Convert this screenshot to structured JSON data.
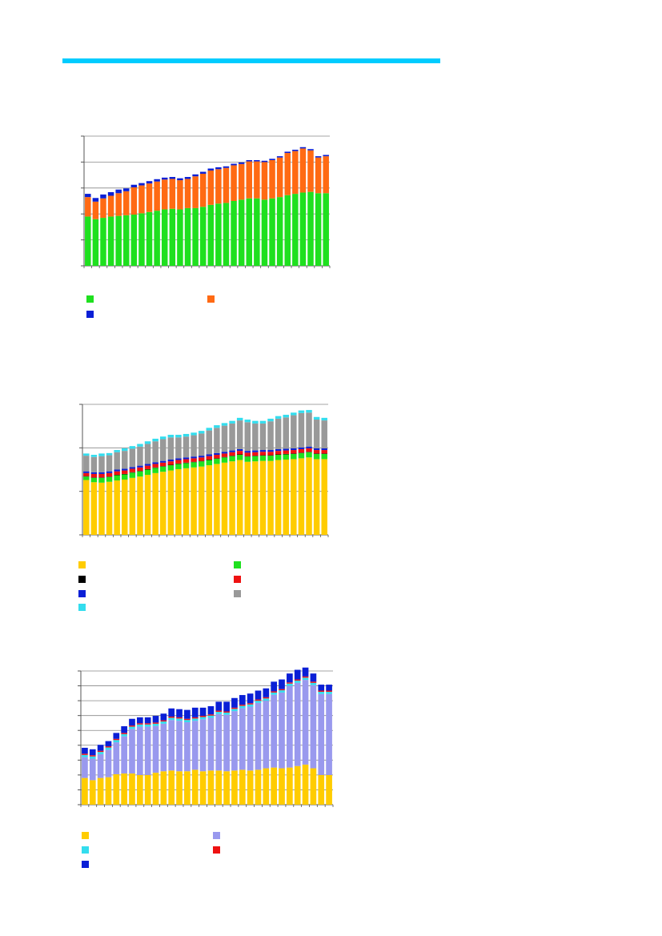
{
  "page": {
    "rule_color": "#00ccff"
  },
  "chart_data": [
    {
      "type": "bar",
      "stacked": true,
      "grid": true,
      "ylim": [
        0,
        1000
      ],
      "ticks": [
        0,
        200,
        400,
        600,
        800,
        1000
      ],
      "series": [
        {
          "color": "#1fe01f",
          "values": [
            380,
            360,
            370,
            380,
            385,
            390,
            395,
            405,
            415,
            425,
            435,
            440,
            435,
            445,
            445,
            455,
            470,
            480,
            485,
            500,
            510,
            520,
            520,
            510,
            520,
            530,
            545,
            555,
            565,
            570,
            560,
            560
          ]
        },
        {
          "color": "#ff6a13",
          "values": [
            150,
            135,
            150,
            160,
            175,
            185,
            210,
            215,
            220,
            225,
            230,
            230,
            225,
            225,
            245,
            255,
            265,
            265,
            270,
            275,
            275,
            285,
            285,
            290,
            295,
            305,
            325,
            330,
            340,
            320,
            275,
            285
          ]
        },
        {
          "color": "#0a1fd6",
          "values": [
            25,
            28,
            30,
            28,
            28,
            22,
            20,
            18,
            18,
            18,
            15,
            15,
            15,
            15,
            15,
            15,
            15,
            15,
            12,
            12,
            12,
            10,
            10,
            10,
            10,
            10,
            10,
            10,
            10,
            10,
            10,
            10
          ]
        }
      ]
    },
    {
      "type": "bar",
      "stacked": true,
      "grid": true,
      "ylim": [
        0,
        1500
      ],
      "ticks": [
        0,
        500,
        1000,
        1500
      ],
      "series": [
        {
          "color": "#ffcc00",
          "values": [
            630,
            605,
            600,
            610,
            625,
            635,
            655,
            670,
            690,
            710,
            725,
            740,
            755,
            765,
            775,
            785,
            800,
            815,
            830,
            845,
            860,
            840,
            845,
            850,
            850,
            860,
            865,
            870,
            880,
            890,
            870,
            870
          ]
        },
        {
          "color": "#1fe01f",
          "values": [
            40,
            50,
            55,
            55,
            60,
            60,
            60,
            60,
            60,
            60,
            60,
            60,
            60,
            60,
            60,
            60,
            60,
            60,
            60,
            60,
            60,
            60,
            60,
            60,
            60,
            60,
            60,
            60,
            60,
            60,
            60,
            60
          ]
        },
        {
          "color": "#000000",
          "values": [
            5,
            5,
            5,
            5,
            5,
            5,
            5,
            5,
            5,
            5,
            5,
            5,
            5,
            5,
            5,
            5,
            5,
            5,
            5,
            5,
            5,
            5,
            5,
            5,
            5,
            5,
            5,
            5,
            5,
            5,
            5,
            5
          ]
        },
        {
          "color": "#ee1111",
          "values": [
            35,
            40,
            40,
            40,
            40,
            40,
            40,
            40,
            40,
            40,
            40,
            40,
            40,
            40,
            40,
            40,
            40,
            40,
            40,
            40,
            40,
            40,
            40,
            40,
            40,
            40,
            40,
            40,
            40,
            40,
            40,
            40
          ]
        },
        {
          "color": "#0a1fd6",
          "values": [
            20,
            20,
            20,
            20,
            20,
            20,
            20,
            20,
            20,
            20,
            20,
            20,
            20,
            20,
            20,
            20,
            20,
            20,
            20,
            20,
            20,
            20,
            20,
            20,
            20,
            20,
            20,
            20,
            20,
            20,
            20,
            20
          ]
        },
        {
          "color": "#999999",
          "values": [
            180,
            175,
            185,
            185,
            200,
            205,
            210,
            220,
            230,
            240,
            250,
            255,
            240,
            240,
            245,
            255,
            275,
            290,
            300,
            310,
            330,
            330,
            310,
            305,
            330,
            350,
            360,
            380,
            395,
            390,
            330,
            320
          ]
        },
        {
          "color": "#33ddee",
          "values": [
            25,
            25,
            30,
            25,
            25,
            30,
            30,
            30,
            30,
            30,
            30,
            30,
            30,
            30,
            30,
            30,
            30,
            30,
            30,
            30,
            30,
            30,
            30,
            30,
            30,
            30,
            30,
            30,
            30,
            30,
            30,
            30
          ]
        }
      ]
    },
    {
      "type": "bar",
      "stacked": true,
      "grid": true,
      "ylim": [
        0,
        900
      ],
      "ticks": [
        0,
        100,
        200,
        300,
        400,
        500,
        600,
        700,
        800,
        900
      ],
      "series": [
        {
          "color": "#ffcc00",
          "values": [
            180,
            165,
            180,
            185,
            205,
            210,
            210,
            200,
            200,
            215,
            225,
            230,
            225,
            225,
            235,
            225,
            230,
            230,
            225,
            230,
            235,
            230,
            235,
            245,
            250,
            245,
            250,
            260,
            270,
            245,
            200,
            200
          ]
        },
        {
          "color": "#9999ee",
          "values": [
            140,
            145,
            160,
            185,
            215,
            250,
            300,
            325,
            325,
            315,
            320,
            340,
            340,
            330,
            330,
            350,
            355,
            380,
            380,
            400,
            415,
            430,
            450,
            455,
            490,
            510,
            550,
            560,
            570,
            560,
            545,
            545
          ]
        },
        {
          "color": "#33ddee",
          "values": [
            15,
            15,
            15,
            15,
            15,
            15,
            15,
            15,
            15,
            15,
            15,
            15,
            15,
            15,
            15,
            15,
            15,
            15,
            15,
            15,
            15,
            15,
            15,
            15,
            15,
            15,
            15,
            15,
            15,
            15,
            15,
            15
          ]
        },
        {
          "color": "#ee1111",
          "values": [
            8,
            8,
            8,
            8,
            8,
            8,
            8,
            8,
            8,
            8,
            8,
            8,
            8,
            8,
            8,
            8,
            8,
            8,
            8,
            8,
            8,
            8,
            8,
            8,
            8,
            8,
            8,
            8,
            8,
            8,
            8,
            8
          ]
        },
        {
          "color": "#0a1fd6",
          "values": [
            40,
            40,
            40,
            35,
            40,
            45,
            45,
            40,
            40,
            45,
            45,
            55,
            55,
            60,
            65,
            55,
            55,
            60,
            65,
            65,
            65,
            65,
            60,
            60,
            65,
            65,
            60,
            65,
            60,
            55,
            40,
            40
          ]
        }
      ]
    }
  ]
}
